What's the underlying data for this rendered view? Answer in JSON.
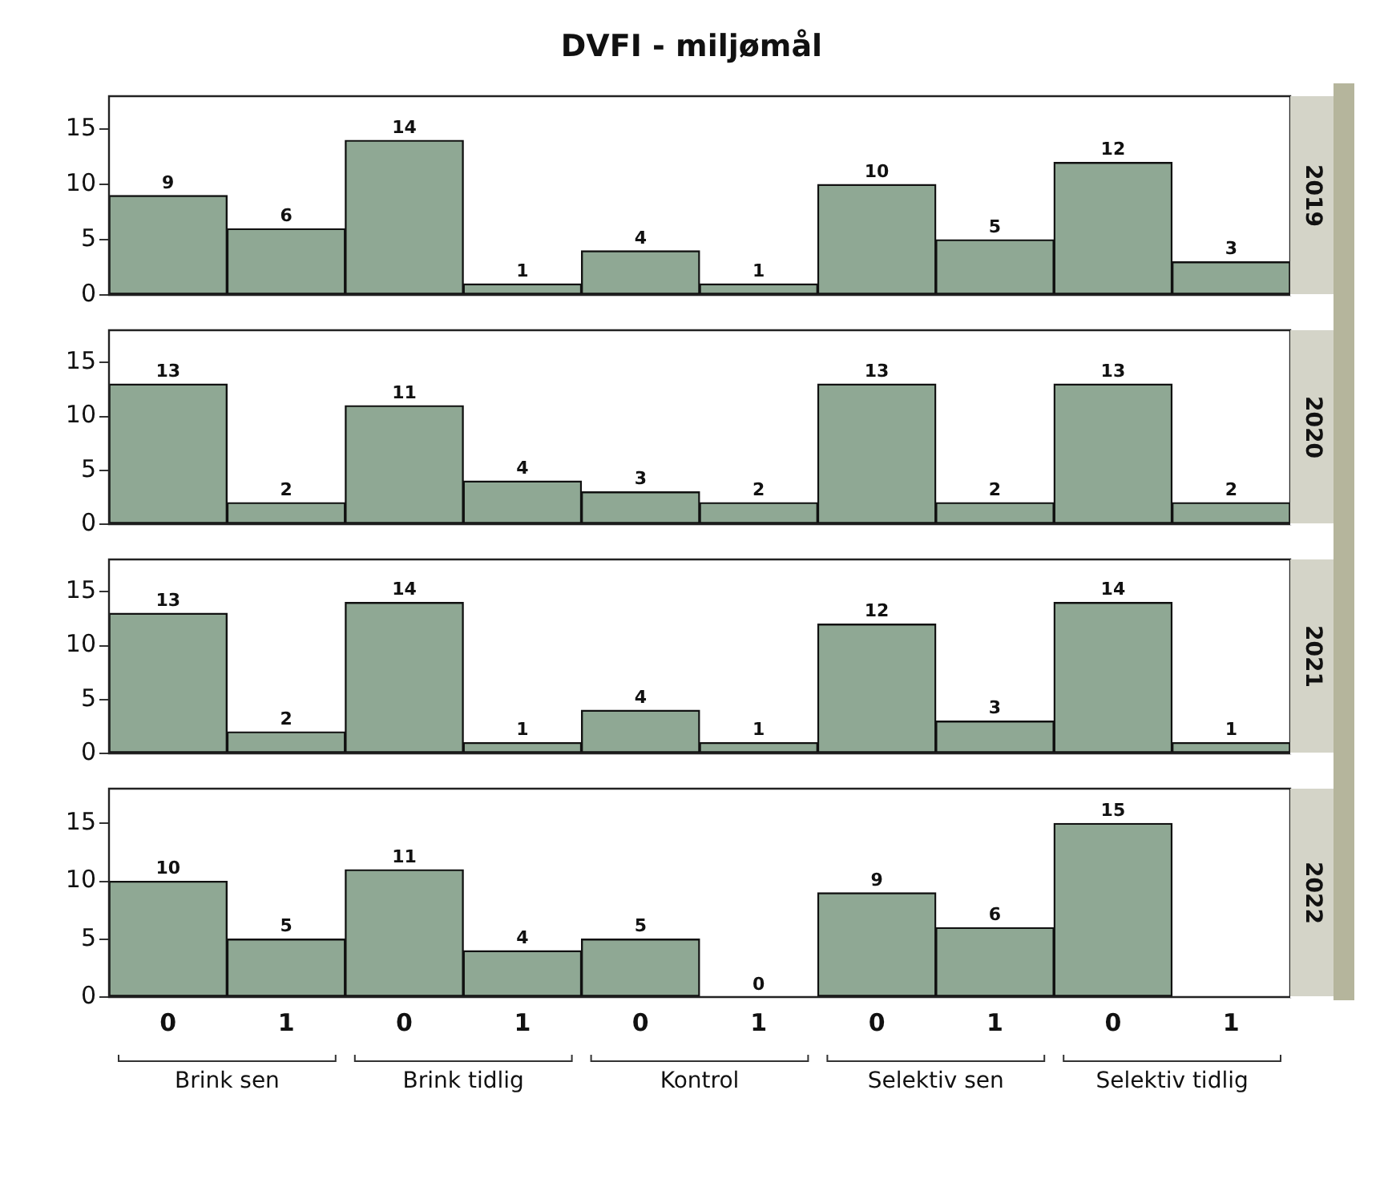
{
  "chart_data": [
    {
      "type": "bar",
      "title": "DVFI - miljømål",
      "y2label": "2019",
      "categories": [
        "0",
        "1",
        "0",
        "1",
        "0",
        "1",
        "0",
        "1",
        "0",
        "1"
      ],
      "values": [
        9,
        6,
        14,
        1,
        4,
        1,
        10,
        5,
        12,
        3
      ],
      "color": "#8fa894",
      "ylim": [
        0,
        18
      ],
      "yticks": [
        0,
        5,
        10,
        15
      ],
      "data_labels": true,
      "tick_labels": "y"
    },
    {
      "type": "bar",
      "y2label": "2020",
      "categories": [
        "0",
        "1",
        "0",
        "1",
        "0",
        "1",
        "0",
        "1",
        "0",
        "1"
      ],
      "values": [
        13,
        2,
        11,
        4,
        3,
        2,
        13,
        2,
        13,
        2
      ],
      "color": "#8fa894",
      "ylim": [
        0,
        18
      ],
      "yticks": [
        0,
        5,
        10,
        15
      ],
      "data_labels": true,
      "tick_labels": "y"
    },
    {
      "type": "bar",
      "y2label": "2021",
      "categories": [
        "0",
        "1",
        "0",
        "1",
        "0",
        "1",
        "0",
        "1",
        "0",
        "1"
      ],
      "values": [
        13,
        2,
        14,
        1,
        4,
        1,
        12,
        3,
        14,
        1
      ],
      "color": "#8fa894",
      "ylim": [
        0,
        18
      ],
      "yticks": [
        0,
        5,
        10,
        15
      ],
      "data_labels": true,
      "tick_labels": "y"
    },
    {
      "type": "bar",
      "y2label": "2022",
      "categories": [
        "0",
        "1",
        "0",
        "1",
        "0",
        "1",
        "0",
        "1",
        "0",
        "1"
      ],
      "values": [
        10,
        5,
        11,
        4,
        5,
        0,
        9,
        6,
        15,
        null
      ],
      "color": "#8fa894",
      "ylim": [
        0,
        18
      ],
      "yticks": [
        0,
        5,
        10,
        15
      ],
      "data_labels": true,
      "annotations": [
        "Brink sen",
        "Brink tidlig",
        "Kontrol",
        "Selektiv sen",
        "Selektiv tidlig"
      ]
    }
  ]
}
